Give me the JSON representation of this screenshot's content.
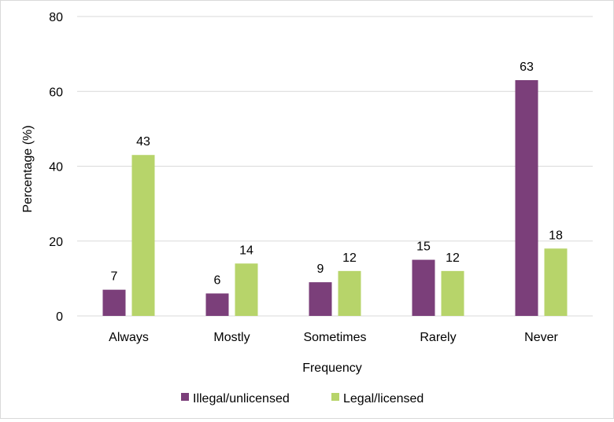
{
  "chart_data": {
    "type": "bar",
    "categories": [
      "Always",
      "Mostly",
      "Sometimes",
      "Rarely",
      "Never"
    ],
    "series": [
      {
        "name": "Illegal/unlicensed",
        "values": [
          7,
          6,
          9,
          15,
          63
        ],
        "color": "#7b3f7a"
      },
      {
        "name": "Legal/licensed",
        "values": [
          43,
          14,
          12,
          12,
          18
        ],
        "color": "#b7d46a"
      }
    ],
    "xlabel": "Frequency",
    "ylabel": "Percentage (%)",
    "ylim": [
      0,
      80
    ],
    "yticks": [
      0,
      20,
      40,
      60,
      80
    ],
    "grid": true,
    "legend": "bottom",
    "gridline_color": "#d9d9d9"
  }
}
